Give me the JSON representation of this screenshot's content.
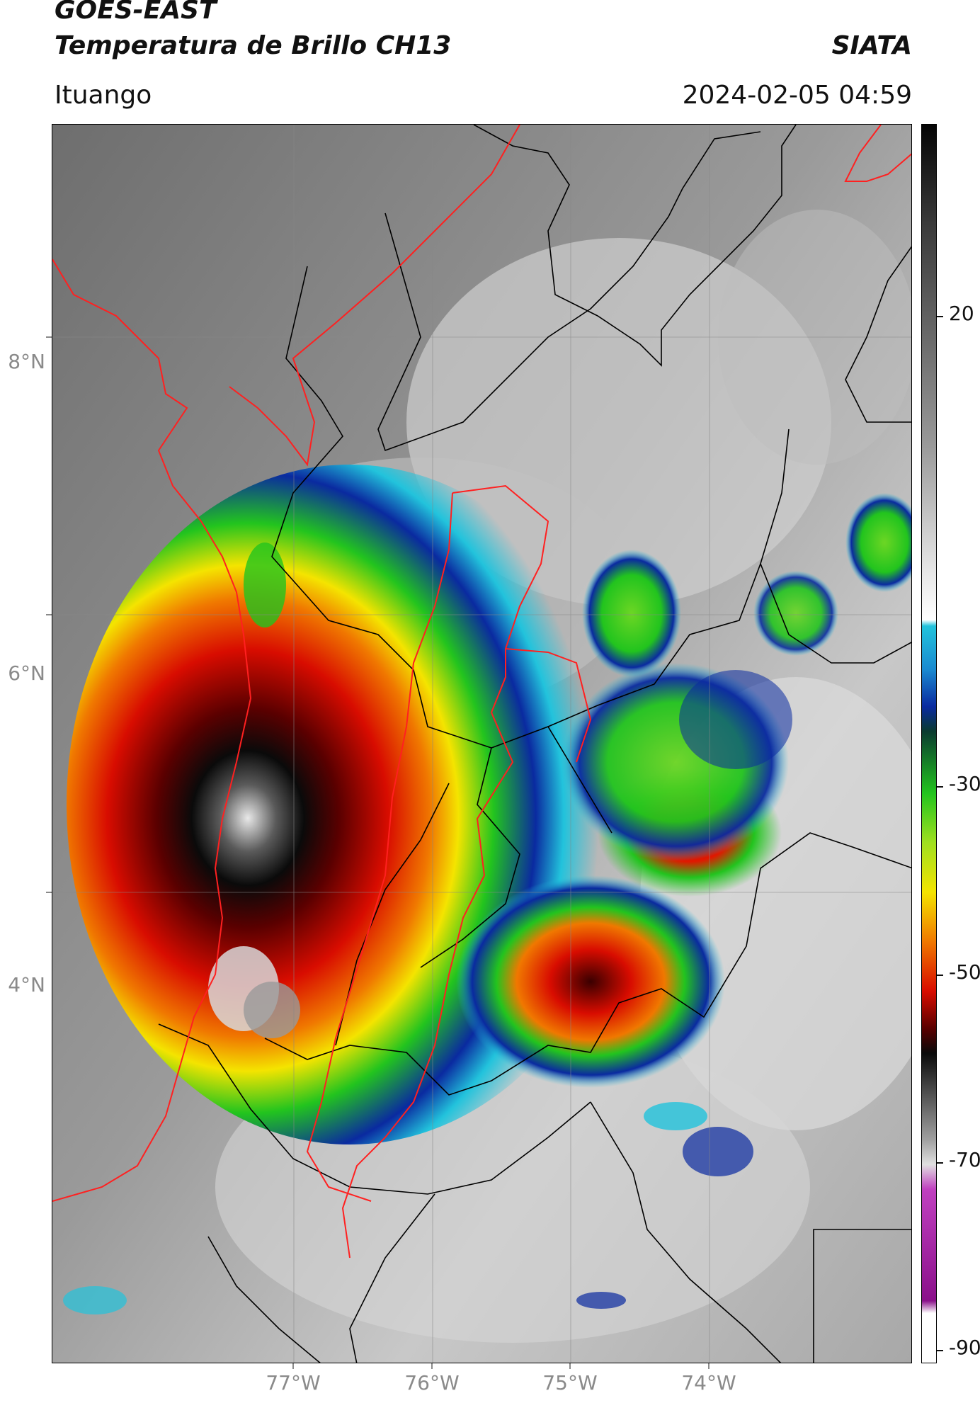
{
  "header": {
    "satellite": "GOES-EAST",
    "product": "Temperatura de Brillo CH13",
    "brand": "SIATA",
    "location": "Ituango",
    "datetime": "2024-02-05 04:59"
  },
  "axes": {
    "lat_labels": [
      "8°N",
      "6°N",
      "4°N"
    ],
    "lon_labels": [
      "77°W",
      "76°W",
      "75°W",
      "74°W"
    ]
  },
  "colorbar": {
    "labels": [
      "20",
      "-30",
      "-50",
      "-70",
      "-90"
    ],
    "colors": {
      "warm": "#6e6e6e",
      "cloud_light": "#e6e6e6",
      "cyan": "#22c3dc",
      "blue": "#0a2aa0",
      "green": "#22c41e",
      "yellow": "#f4e400",
      "orange": "#f07800",
      "red": "#d80c00",
      "darkred": "#5a0000",
      "black": "#0a0a0a",
      "magenta": "#c040c0",
      "purple": "#8a108a"
    }
  },
  "overlays": {
    "country_border_color": "#ff2020",
    "department_border_color": "#000000"
  }
}
